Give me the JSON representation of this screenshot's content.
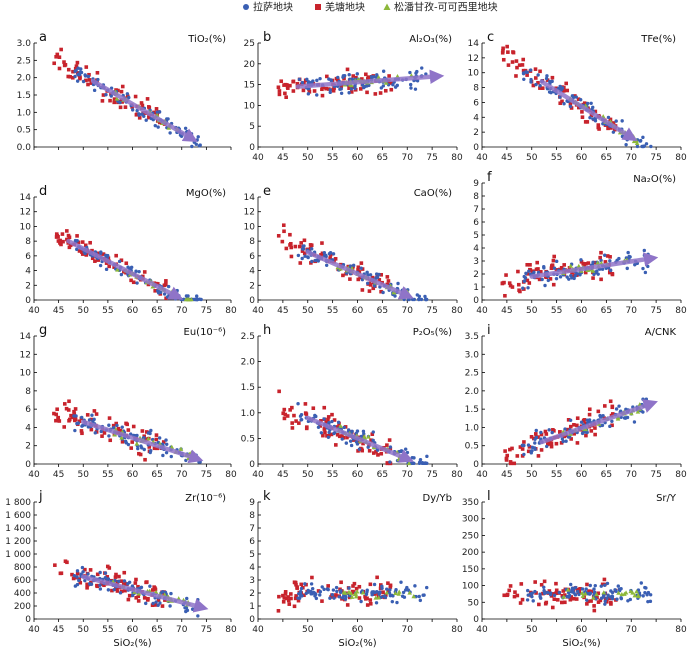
{
  "legend": [
    {
      "name": "拉萨地块",
      "color": "#3a5fb3",
      "marker": "circle"
    },
    {
      "name": "羌塘地块",
      "color": "#c8232c",
      "marker": "square"
    },
    {
      "name": "松潘甘孜-可可西里地块",
      "color": "#8db83a",
      "marker": "triangle"
    }
  ],
  "arrow_color": "#8f74c8",
  "chart_data": [
    {
      "type": "scatter",
      "panel": "a",
      "ylabel": "TiO₂(%)",
      "xlim": [
        40,
        80
      ],
      "ylim": [
        0,
        3
      ],
      "yticks": [
        "0.0",
        "0.5",
        "1.0",
        "1.5",
        "2.0",
        "2.5",
        "3.0"
      ],
      "xticks": [
        "",
        "",
        "",
        "",
        "",
        "",
        "",
        "",
        ""
      ],
      "trend": [
        [
          52,
          1.9
        ],
        [
          72,
          0.25
        ]
      ]
    },
    {
      "type": "scatter",
      "panel": "b",
      "ylabel": "Al₂O₃(%)",
      "xlim": [
        40,
        80
      ],
      "ylim": [
        0,
        25
      ],
      "yticks": [
        "0",
        "5",
        "10",
        "15",
        "20",
        "25"
      ],
      "xticks": [
        "40",
        "45",
        "50",
        "55",
        "60",
        "65",
        "70",
        "75",
        "80"
      ],
      "trend": [
        [
          48,
          14.5
        ],
        [
          76,
          17
        ]
      ]
    },
    {
      "type": "scatter",
      "panel": "c",
      "ylabel": "TFe(%)",
      "xlim": [
        40,
        80
      ],
      "ylim": [
        0,
        14
      ],
      "yticks": [
        "0",
        "2",
        "4",
        "6",
        "8",
        "10",
        "12",
        "14"
      ],
      "xticks": [
        "40",
        "45",
        "50",
        "55",
        "60",
        "65",
        "70",
        "75",
        "80"
      ],
      "trend": [
        [
          52,
          8.8
        ],
        [
          70,
          1.3
        ]
      ]
    },
    {
      "type": "scatter",
      "panel": "d",
      "ylabel": "MgO(%)",
      "xlim": [
        40,
        80
      ],
      "ylim": [
        0,
        14
      ],
      "yticks": [
        "0",
        "2",
        "4",
        "6",
        "8",
        "10",
        "12",
        "14"
      ],
      "xticks": [
        "40",
        "45",
        "50",
        "55",
        "60",
        "65",
        "70",
        "75",
        "80"
      ],
      "trend": [
        [
          47,
          8
        ],
        [
          69,
          0.5
        ]
      ]
    },
    {
      "type": "scatter",
      "panel": "e",
      "ylabel": "CaO(%)",
      "xlim": [
        40,
        80
      ],
      "ylim": [
        0,
        14
      ],
      "yticks": [
        "0",
        "2",
        "4",
        "6",
        "8",
        "10",
        "12",
        "14"
      ],
      "xticks": [
        "40",
        "45",
        "50",
        "55",
        "60",
        "65",
        "70",
        "75",
        "80"
      ],
      "trend": [
        [
          50,
          6.5
        ],
        [
          70,
          0.6
        ]
      ]
    },
    {
      "type": "scatter",
      "panel": "f",
      "ylabel": "Na₂O(%)",
      "xlim": [
        40,
        80
      ],
      "ylim": [
        0,
        9
      ],
      "yticks": [
        "0",
        "1",
        "2",
        "3",
        "4",
        "5",
        "6",
        "7",
        "8",
        "9"
      ],
      "xticks": [
        "40",
        "45",
        "50",
        "55",
        "60",
        "65",
        "70",
        "75",
        "80"
      ],
      "trend": [
        [
          50,
          1.8
        ],
        [
          74,
          3.2
        ]
      ]
    },
    {
      "type": "scatter",
      "panel": "g",
      "ylabel": "Eu(10⁻⁶)",
      "xlim": [
        40,
        80
      ],
      "ylim": [
        0,
        14
      ],
      "yticks": [
        "0",
        "2",
        "4",
        "6",
        "8",
        "10",
        "12",
        "14"
      ],
      "xticks": [
        "40",
        "45",
        "50",
        "55",
        "60",
        "65",
        "70",
        "75",
        "80"
      ],
      "trend": [
        [
          50,
          4.6
        ],
        [
          73,
          0.6
        ]
      ]
    },
    {
      "type": "scatter",
      "panel": "h",
      "ylabel": "P₂O₅(%)",
      "xlim": [
        40,
        80
      ],
      "ylim": [
        0,
        2.5
      ],
      "yticks": [
        "0",
        "0.5",
        "1.0",
        "1.5",
        "2.0",
        "2.5"
      ],
      "xticks": [
        "40",
        "45",
        "50",
        "55",
        "60",
        "65",
        "70",
        "75",
        "80"
      ],
      "trend": [
        [
          50,
          0.9
        ],
        [
          70,
          0.1
        ]
      ]
    },
    {
      "type": "scatter",
      "panel": "i",
      "ylabel": "A/CNK",
      "xlim": [
        40,
        80
      ],
      "ylim": [
        0,
        3.5
      ],
      "yticks": [
        "0",
        "0.5",
        "1.0",
        "1.5",
        "2.0",
        "2.5",
        "3.0",
        "3.5"
      ],
      "xticks": [
        "40",
        "45",
        "50",
        "55",
        "60",
        "65",
        "70",
        "75",
        "80"
      ],
      "trend": [
        [
          52,
          0.6
        ],
        [
          74,
          1.65
        ]
      ]
    },
    {
      "type": "scatter",
      "panel": "j",
      "ylabel": "Zr(10⁻⁶)",
      "xlim": [
        40,
        80
      ],
      "ylim": [
        0,
        1800
      ],
      "yticks": [
        "0",
        "200",
        "400",
        "600",
        "800",
        "1 000",
        "1 200",
        "1 400",
        "1 600",
        "1 800"
      ],
      "xticks": [
        "40",
        "45",
        "50",
        "55",
        "60",
        "65",
        "70",
        "75",
        "80"
      ],
      "xlabel": "SiO₂(%)",
      "trend": [
        [
          50,
          650
        ],
        [
          74,
          180
        ]
      ]
    },
    {
      "type": "scatter",
      "panel": "k",
      "ylabel": "Dy/Yb",
      "xlim": [
        40,
        80
      ],
      "ylim": [
        0,
        9
      ],
      "yticks": [
        "0",
        "1",
        "2",
        "3",
        "4",
        "5",
        "6",
        "7",
        "8",
        "9"
      ],
      "xticks": [
        "40",
        "",
        "50",
        "",
        "60",
        "",
        "70",
        "",
        "80"
      ],
      "xlabel": "SiO₂(%)"
    },
    {
      "type": "scatter",
      "panel": "l",
      "ylabel": "Sr/Y",
      "xlim": [
        40,
        80
      ],
      "ylim": [
        0,
        350
      ],
      "yticks": [
        "0",
        "50",
        "100",
        "150",
        "200",
        "250",
        "300",
        "350"
      ],
      "xticks": [
        "40",
        "",
        "50",
        "",
        "60",
        "",
        "70",
        "",
        "80"
      ],
      "xlabel": "SiO₂(%)"
    }
  ]
}
